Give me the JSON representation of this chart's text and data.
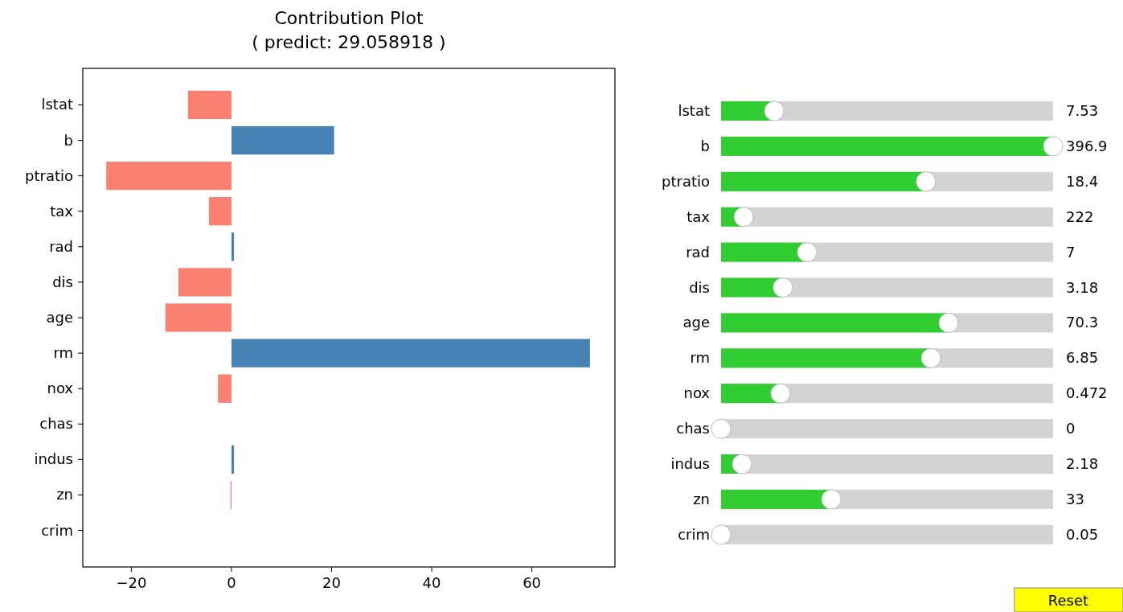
{
  "chart_data": [
    {
      "type": "bar",
      "orientation": "horizontal",
      "title": "Contribution Plot\n( predict: 29.058918 )",
      "categories": [
        "lstat",
        "b",
        "ptratio",
        "tax",
        "rad",
        "dis",
        "age",
        "rm",
        "nox",
        "chas",
        "indus",
        "zn",
        "crim"
      ],
      "values": [
        -8.7,
        20.5,
        -25.0,
        -4.5,
        0.5,
        -10.6,
        -13.2,
        71.6,
        -2.7,
        0,
        0.5,
        -0.2,
        0
      ],
      "colors": [
        "#fa8072",
        "#4682b4",
        "#fa8072",
        "#fa8072",
        "#4682b4",
        "#fa8072",
        "#fa8072",
        "#4682b4",
        "#fa8072",
        "#fa8072",
        "#4682b4",
        "#fa8072",
        "#fa8072"
      ],
      "xlim": [
        -29.7,
        76.6
      ],
      "xticks": [
        {
          "value": -20,
          "label": "−20"
        },
        0,
        20,
        40,
        60
      ]
    },
    {
      "type": "other",
      "categories": [
        "lstat",
        "b",
        "ptratio",
        "tax",
        "rad",
        "dis",
        "age",
        "rm",
        "nox",
        "chas",
        "indus",
        "zn",
        "crim"
      ],
      "values": [
        7.53,
        396.9,
        18.4,
        222,
        7,
        3.18,
        70.3,
        6.85,
        0.472,
        0,
        2.18,
        33,
        0.05
      ],
      "data_labels": true,
      "annotations": [
        "Reset"
      ]
    }
  ]
}
